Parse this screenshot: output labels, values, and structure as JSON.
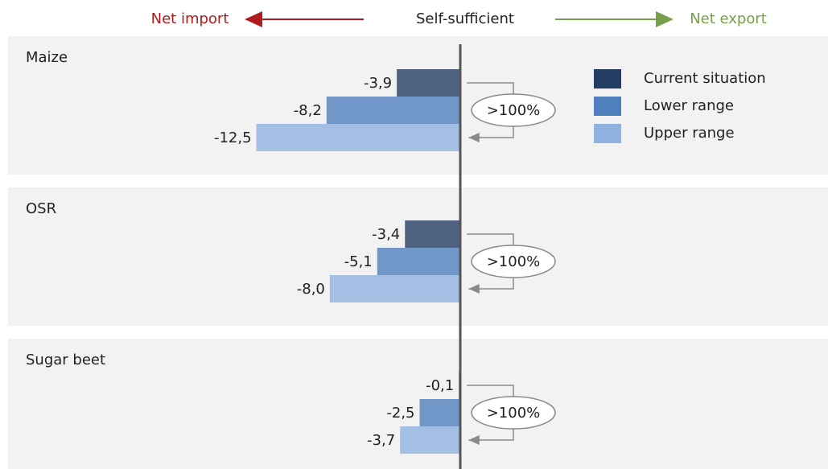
{
  "chart_data": {
    "type": "bar",
    "orientation": "horizontal",
    "header": {
      "left": "Net import",
      "center": "Self-sufficient",
      "right": "Net export"
    },
    "categories": [
      "Maize",
      "OSR",
      "Sugar beet"
    ],
    "series": [
      {
        "name": "Current situation",
        "color": "#243d63",
        "values": [
          -3.9,
          -3.4,
          -0.1
        ],
        "value_labels": [
          "-3,9",
          "-3,4",
          "-0,1"
        ]
      },
      {
        "name": "Lower range",
        "color": "#4f7fbd",
        "values": [
          -8.2,
          -5.1,
          -2.5
        ],
        "value_labels": [
          "-8,2",
          "-5,1",
          "-2,5"
        ]
      },
      {
        "name": "Upper range",
        "color": "#8fb1e0",
        "values": [
          -12.5,
          -8.0,
          -3.7
        ],
        "value_labels": [
          "-12,5",
          "-8,0",
          "-3,7"
        ]
      }
    ],
    "annotations": [
      ">100%",
      ">100%",
      ">100%"
    ],
    "xlim": [
      -27.7,
      22.5
    ],
    "legend": "top-right"
  }
}
